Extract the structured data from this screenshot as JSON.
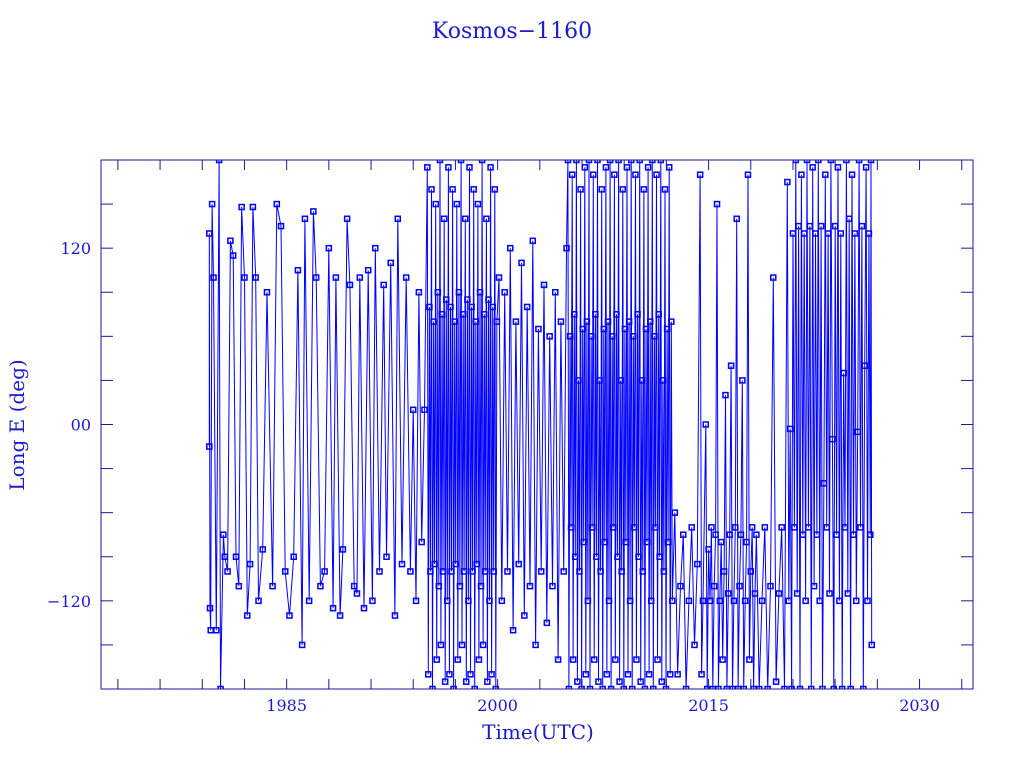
{
  "chart_data": {
    "type": "scatter",
    "mode": "lines+markers",
    "title": "Kosmos−1160",
    "xlabel": "Time(UTC)",
    "ylabel": "Long E (deg)",
    "xlim": [
      1971.8,
      2033.8
    ],
    "ylim": [
      -180,
      180
    ],
    "xticks": [
      1985,
      2000,
      2015,
      2030
    ],
    "xtick_labels": [
      "1985",
      "2000",
      "2015",
      "2030"
    ],
    "xminor_step": 3,
    "yticks": [
      120,
      0,
      -120
    ],
    "ytick_labels": [
      "120",
      "00",
      "−120"
    ],
    "yminor_step": 30,
    "grid": false,
    "colors": {
      "series": "#0000ff",
      "axes": "#1a1a9a",
      "text": "#1a1acc"
    },
    "points": [
      [
        1979.5,
        -15
      ],
      [
        1979.5,
        130
      ],
      [
        1979.55,
        -125
      ],
      [
        1979.6,
        -140
      ],
      [
        1979.7,
        150
      ],
      [
        1979.8,
        100
      ],
      [
        1980.0,
        -140
      ],
      [
        1980.2,
        180
      ],
      [
        1980.3,
        -180
      ],
      [
        1980.5,
        -75
      ],
      [
        1980.6,
        -90
      ],
      [
        1980.8,
        -100
      ],
      [
        1981.0,
        125
      ],
      [
        1981.2,
        115
      ],
      [
        1981.4,
        -90
      ],
      [
        1981.6,
        -110
      ],
      [
        1981.8,
        148
      ],
      [
        1982.0,
        100
      ],
      [
        1982.2,
        -130
      ],
      [
        1982.4,
        -95
      ],
      [
        1982.6,
        148
      ],
      [
        1982.8,
        100
      ],
      [
        1983.0,
        -120
      ],
      [
        1983.3,
        -85
      ],
      [
        1983.6,
        90
      ],
      [
        1984.0,
        -110
      ],
      [
        1984.3,
        150
      ],
      [
        1984.6,
        135
      ],
      [
        1984.9,
        -100
      ],
      [
        1985.2,
        -130
      ],
      [
        1985.5,
        -90
      ],
      [
        1985.8,
        105
      ],
      [
        1986.1,
        -150
      ],
      [
        1986.3,
        140
      ],
      [
        1986.6,
        -120
      ],
      [
        1986.9,
        145
      ],
      [
        1987.1,
        100
      ],
      [
        1987.4,
        -110
      ],
      [
        1987.7,
        -100
      ],
      [
        1988.0,
        120
      ],
      [
        1988.3,
        -125
      ],
      [
        1988.5,
        100
      ],
      [
        1988.8,
        -130
      ],
      [
        1989.0,
        -85
      ],
      [
        1989.3,
        140
      ],
      [
        1989.5,
        95
      ],
      [
        1989.8,
        -110
      ],
      [
        1990.0,
        -115
      ],
      [
        1990.2,
        100
      ],
      [
        1990.5,
        -125
      ],
      [
        1990.8,
        105
      ],
      [
        1991.1,
        -120
      ],
      [
        1991.3,
        120
      ],
      [
        1991.6,
        -100
      ],
      [
        1991.9,
        95
      ],
      [
        1992.1,
        -90
      ],
      [
        1992.4,
        110
      ],
      [
        1992.7,
        -130
      ],
      [
        1992.9,
        140
      ],
      [
        1993.2,
        -95
      ],
      [
        1993.5,
        100
      ],
      [
        1993.8,
        -100
      ],
      [
        1994.0,
        10
      ],
      [
        1994.2,
        -120
      ],
      [
        1994.4,
        90
      ],
      [
        1994.6,
        -80
      ],
      [
        1994.8,
        10
      ],
      [
        1995.0,
        175
      ],
      [
        1995.07,
        -170
      ],
      [
        1995.15,
        80
      ],
      [
        1995.22,
        -100
      ],
      [
        1995.3,
        160
      ],
      [
        1995.37,
        -180
      ],
      [
        1995.45,
        70
      ],
      [
        1995.52,
        -95
      ],
      [
        1995.6,
        150
      ],
      [
        1995.67,
        -160
      ],
      [
        1995.75,
        90
      ],
      [
        1995.82,
        -110
      ],
      [
        1995.9,
        180
      ],
      [
        1995.97,
        -150
      ],
      [
        1996.05,
        75
      ],
      [
        1996.12,
        -100
      ],
      [
        1996.2,
        140
      ],
      [
        1996.27,
        -175
      ],
      [
        1996.35,
        85
      ],
      [
        1996.42,
        -120
      ],
      [
        1996.5,
        175
      ],
      [
        1996.57,
        -170
      ],
      [
        1996.65,
        80
      ],
      [
        1996.72,
        -100
      ],
      [
        1996.8,
        160
      ],
      [
        1996.87,
        -180
      ],
      [
        1996.95,
        70
      ],
      [
        1997.02,
        -95
      ],
      [
        1997.1,
        150
      ],
      [
        1997.17,
        -160
      ],
      [
        1997.25,
        90
      ],
      [
        1997.32,
        -110
      ],
      [
        1997.4,
        180
      ],
      [
        1997.47,
        -150
      ],
      [
        1997.55,
        75
      ],
      [
        1997.62,
        -100
      ],
      [
        1997.7,
        140
      ],
      [
        1997.77,
        -175
      ],
      [
        1997.85,
        85
      ],
      [
        1997.92,
        -120
      ],
      [
        1998.0,
        175
      ],
      [
        1998.07,
        -170
      ],
      [
        1998.15,
        80
      ],
      [
        1998.22,
        -100
      ],
      [
        1998.3,
        160
      ],
      [
        1998.37,
        -180
      ],
      [
        1998.45,
        70
      ],
      [
        1998.52,
        -95
      ],
      [
        1998.6,
        150
      ],
      [
        1998.67,
        -160
      ],
      [
        1998.75,
        90
      ],
      [
        1998.82,
        -110
      ],
      [
        1998.9,
        180
      ],
      [
        1998.97,
        -150
      ],
      [
        1999.05,
        75
      ],
      [
        1999.12,
        -100
      ],
      [
        1999.2,
        140
      ],
      [
        1999.27,
        -175
      ],
      [
        1999.35,
        85
      ],
      [
        1999.42,
        -120
      ],
      [
        1999.5,
        175
      ],
      [
        1999.57,
        -170
      ],
      [
        1999.65,
        80
      ],
      [
        1999.72,
        -100
      ],
      [
        1999.8,
        160
      ],
      [
        1999.87,
        -180
      ],
      [
        1999.95,
        70
      ],
      [
        2000.1,
        100
      ],
      [
        2000.3,
        -120
      ],
      [
        2000.5,
        90
      ],
      [
        2000.7,
        -100
      ],
      [
        2000.9,
        120
      ],
      [
        2001.1,
        -140
      ],
      [
        2001.3,
        70
      ],
      [
        2001.5,
        -95
      ],
      [
        2001.7,
        110
      ],
      [
        2001.9,
        -130
      ],
      [
        2002.1,
        80
      ],
      [
        2002.3,
        -110
      ],
      [
        2002.5,
        125
      ],
      [
        2002.7,
        -150
      ],
      [
        2002.9,
        65
      ],
      [
        2003.1,
        -100
      ],
      [
        2003.3,
        95
      ],
      [
        2003.5,
        -135
      ],
      [
        2003.7,
        60
      ],
      [
        2003.9,
        -110
      ],
      [
        2004.1,
        90
      ],
      [
        2004.3,
        -160
      ],
      [
        2004.5,
        70
      ],
      [
        2004.7,
        -100
      ],
      [
        2004.9,
        120
      ],
      [
        2005.0,
        180
      ],
      [
        2005.07,
        -180
      ],
      [
        2005.15,
        60
      ],
      [
        2005.22,
        -70
      ],
      [
        2005.3,
        170
      ],
      [
        2005.37,
        -160
      ],
      [
        2005.45,
        75
      ],
      [
        2005.52,
        -90
      ],
      [
        2005.6,
        180
      ],
      [
        2005.67,
        -175
      ],
      [
        2005.75,
        30
      ],
      [
        2005.82,
        -100
      ],
      [
        2005.9,
        160
      ],
      [
        2005.97,
        -180
      ],
      [
        2006.05,
        65
      ],
      [
        2006.12,
        -80
      ],
      [
        2006.2,
        175
      ],
      [
        2006.27,
        -170
      ],
      [
        2006.35,
        70
      ],
      [
        2006.42,
        -120
      ],
      [
        2006.5,
        180
      ],
      [
        2006.57,
        -180
      ],
      [
        2006.65,
        60
      ],
      [
        2006.72,
        -70
      ],
      [
        2006.8,
        170
      ],
      [
        2006.87,
        -160
      ],
      [
        2006.95,
        75
      ],
      [
        2007.02,
        -90
      ],
      [
        2007.1,
        180
      ],
      [
        2007.17,
        -175
      ],
      [
        2007.25,
        30
      ],
      [
        2007.32,
        -100
      ],
      [
        2007.4,
        160
      ],
      [
        2007.47,
        -180
      ],
      [
        2007.55,
        65
      ],
      [
        2007.62,
        -80
      ],
      [
        2007.7,
        175
      ],
      [
        2007.77,
        -170
      ],
      [
        2007.85,
        70
      ],
      [
        2007.92,
        -120
      ],
      [
        2008.0,
        180
      ],
      [
        2008.07,
        -180
      ],
      [
        2008.15,
        60
      ],
      [
        2008.22,
        -70
      ],
      [
        2008.3,
        170
      ],
      [
        2008.37,
        -160
      ],
      [
        2008.45,
        75
      ],
      [
        2008.52,
        -90
      ],
      [
        2008.6,
        180
      ],
      [
        2008.67,
        -175
      ],
      [
        2008.75,
        30
      ],
      [
        2008.82,
        -100
      ],
      [
        2008.9,
        160
      ],
      [
        2008.97,
        -180
      ],
      [
        2009.05,
        65
      ],
      [
        2009.12,
        -80
      ],
      [
        2009.2,
        175
      ],
      [
        2009.27,
        -170
      ],
      [
        2009.35,
        70
      ],
      [
        2009.42,
        -120
      ],
      [
        2009.5,
        180
      ],
      [
        2009.57,
        -180
      ],
      [
        2009.65,
        60
      ],
      [
        2009.72,
        -70
      ],
      [
        2009.8,
        170
      ],
      [
        2009.87,
        -160
      ],
      [
        2009.95,
        75
      ],
      [
        2010.02,
        -90
      ],
      [
        2010.1,
        180
      ],
      [
        2010.17,
        -175
      ],
      [
        2010.25,
        30
      ],
      [
        2010.32,
        -100
      ],
      [
        2010.4,
        160
      ],
      [
        2010.47,
        -180
      ],
      [
        2010.55,
        65
      ],
      [
        2010.62,
        -80
      ],
      [
        2010.7,
        175
      ],
      [
        2010.77,
        -170
      ],
      [
        2010.85,
        70
      ],
      [
        2010.92,
        -120
      ],
      [
        2011.0,
        180
      ],
      [
        2011.07,
        -180
      ],
      [
        2011.15,
        60
      ],
      [
        2011.22,
        -70
      ],
      [
        2011.3,
        170
      ],
      [
        2011.37,
        -160
      ],
      [
        2011.45,
        75
      ],
      [
        2011.52,
        -90
      ],
      [
        2011.6,
        180
      ],
      [
        2011.67,
        -175
      ],
      [
        2011.75,
        30
      ],
      [
        2011.82,
        -100
      ],
      [
        2011.9,
        160
      ],
      [
        2011.97,
        -180
      ],
      [
        2012.05,
        65
      ],
      [
        2012.12,
        -80
      ],
      [
        2012.2,
        175
      ],
      [
        2012.27,
        -170
      ],
      [
        2012.35,
        70
      ],
      [
        2012.42,
        -120
      ],
      [
        2012.6,
        -60
      ],
      [
        2012.8,
        -170
      ],
      [
        2013.0,
        -110
      ],
      [
        2013.2,
        -75
      ],
      [
        2013.4,
        -180
      ],
      [
        2013.6,
        -120
      ],
      [
        2013.8,
        -70
      ],
      [
        2014.0,
        -150
      ],
      [
        2014.2,
        -95
      ],
      [
        2014.4,
        170
      ],
      [
        2014.5,
        -170
      ],
      [
        2014.6,
        -120
      ],
      [
        2014.8,
        0
      ],
      [
        2014.9,
        -180
      ],
      [
        2015.0,
        -85
      ],
      [
        2015.1,
        -120
      ],
      [
        2015.2,
        -70
      ],
      [
        2015.3,
        -180
      ],
      [
        2015.4,
        -110
      ],
      [
        2015.5,
        -75
      ],
      [
        2015.6,
        150
      ],
      [
        2015.7,
        -180
      ],
      [
        2015.8,
        -120
      ],
      [
        2015.9,
        -80
      ],
      [
        2016.0,
        -160
      ],
      [
        2016.1,
        -100
      ],
      [
        2016.2,
        20
      ],
      [
        2016.3,
        -180
      ],
      [
        2016.4,
        -115
      ],
      [
        2016.5,
        -75
      ],
      [
        2016.6,
        40
      ],
      [
        2016.7,
        -180
      ],
      [
        2016.8,
        -120
      ],
      [
        2016.9,
        -70
      ],
      [
        2017.0,
        140
      ],
      [
        2017.1,
        -180
      ],
      [
        2017.2,
        -110
      ],
      [
        2017.3,
        -75
      ],
      [
        2017.4,
        30
      ],
      [
        2017.5,
        -180
      ],
      [
        2017.6,
        -120
      ],
      [
        2017.7,
        -80
      ],
      [
        2017.8,
        170
      ],
      [
        2017.9,
        -160
      ],
      [
        2018.0,
        -100
      ],
      [
        2018.1,
        -70
      ],
      [
        2018.2,
        -180
      ],
      [
        2018.3,
        -115
      ],
      [
        2018.4,
        -75
      ],
      [
        2018.6,
        -180
      ],
      [
        2018.8,
        -120
      ],
      [
        2019.0,
        -70
      ],
      [
        2019.2,
        -180
      ],
      [
        2019.4,
        -110
      ],
      [
        2019.6,
        100
      ],
      [
        2019.8,
        -175
      ],
      [
        2020.0,
        -115
      ],
      [
        2020.2,
        -70
      ],
      [
        2020.4,
        -180
      ],
      [
        2020.6,
        165
      ],
      [
        2020.7,
        -120
      ],
      [
        2020.8,
        -3
      ],
      [
        2020.9,
        -180
      ],
      [
        2021.0,
        130
      ],
      [
        2021.1,
        -70
      ],
      [
        2021.2,
        180
      ],
      [
        2021.3,
        -115
      ],
      [
        2021.4,
        135
      ],
      [
        2021.5,
        -180
      ],
      [
        2021.6,
        170
      ],
      [
        2021.7,
        -75
      ],
      [
        2021.8,
        130
      ],
      [
        2021.9,
        -120
      ],
      [
        2022.0,
        180
      ],
      [
        2022.1,
        -70
      ],
      [
        2022.2,
        135
      ],
      [
        2022.3,
        -180
      ],
      [
        2022.4,
        175
      ],
      [
        2022.5,
        -110
      ],
      [
        2022.6,
        130
      ],
      [
        2022.7,
        -75
      ],
      [
        2022.8,
        180
      ],
      [
        2022.9,
        -120
      ],
      [
        2023.0,
        135
      ],
      [
        2023.1,
        -180
      ],
      [
        2023.2,
        -40
      ],
      [
        2023.3,
        170
      ],
      [
        2023.4,
        -70
      ],
      [
        2023.5,
        130
      ],
      [
        2023.6,
        -115
      ],
      [
        2023.7,
        180
      ],
      [
        2023.8,
        -10
      ],
      [
        2023.9,
        -180
      ],
      [
        2024.0,
        135
      ],
      [
        2024.1,
        -75
      ],
      [
        2024.2,
        175
      ],
      [
        2024.3,
        -120
      ],
      [
        2024.4,
        130
      ],
      [
        2024.5,
        -180
      ],
      [
        2024.6,
        35
      ],
      [
        2024.7,
        -70
      ],
      [
        2024.8,
        180
      ],
      [
        2024.9,
        -115
      ],
      [
        2025.0,
        140
      ],
      [
        2025.1,
        -180
      ],
      [
        2025.2,
        170
      ],
      [
        2025.3,
        -75
      ],
      [
        2025.4,
        130
      ],
      [
        2025.5,
        -120
      ],
      [
        2025.6,
        -5
      ],
      [
        2025.7,
        180
      ],
      [
        2025.8,
        -70
      ],
      [
        2025.9,
        135
      ],
      [
        2026.0,
        -180
      ],
      [
        2026.1,
        40
      ],
      [
        2026.2,
        175
      ],
      [
        2026.3,
        -120
      ],
      [
        2026.4,
        130
      ],
      [
        2026.5,
        -75
      ],
      [
        2026.55,
        180
      ],
      [
        2026.6,
        -150
      ]
    ]
  }
}
